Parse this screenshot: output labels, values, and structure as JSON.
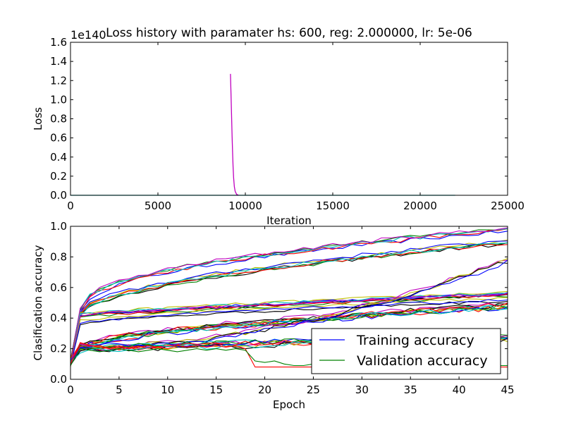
{
  "chart_data": [
    {
      "type": "line",
      "title": "Loss history with paramater hs: 600, reg: 2.000000, lr: 5e-06",
      "offset_text": "1e140",
      "xlabel": "Iteration",
      "ylabel": "Loss",
      "xlim": [
        0,
        25000
      ],
      "ylim": [
        0,
        1.6
      ],
      "xticks": [
        0,
        5000,
        10000,
        15000,
        20000,
        25000
      ],
      "yticks": [
        0.0,
        0.2,
        0.4,
        0.6,
        0.8,
        1.0,
        1.2,
        1.4,
        1.6
      ],
      "grid": false,
      "series": [
        {
          "color": "#00bfbf",
          "points": [
            [
              0,
              0
            ],
            [
              22000,
              0
            ]
          ]
        },
        {
          "color": "#bf00bf",
          "points": [
            [
              9150,
              1.27
            ],
            [
              9180,
              1.05
            ],
            [
              9210,
              0.85
            ],
            [
              9240,
              0.62
            ],
            [
              9270,
              0.45
            ],
            [
              9300,
              0.3
            ],
            [
              9330,
              0.18
            ],
            [
              9370,
              0.09
            ],
            [
              9420,
              0.04
            ],
            [
              9500,
              0.01
            ],
            [
              9600,
              0.0
            ]
          ]
        }
      ]
    },
    {
      "type": "line",
      "xlabel": "Epoch",
      "ylabel": "Clasification accuracy",
      "xlim": [
        0,
        45
      ],
      "ylim": [
        0,
        1.0
      ],
      "xticks": [
        0,
        5,
        10,
        15,
        20,
        25,
        30,
        35,
        40,
        45
      ],
      "yticks": [
        0.0,
        0.2,
        0.4,
        0.6,
        0.8,
        1.0
      ],
      "grid": false,
      "legend": {
        "placement": "lower right",
        "entries": [
          {
            "label": "Training accuracy",
            "color": "#0000ff"
          },
          {
            "label": "Validation accuracy",
            "color": "#008000"
          }
        ]
      },
      "palette": [
        "#0000ff",
        "#008000",
        "#ff0000",
        "#00bfbf",
        "#bf00bf",
        "#bfbf00",
        "#000000"
      ],
      "families": [
        {
          "start": 0.12,
          "y1": 0.45,
          "end": 0.98,
          "p": 0.45,
          "n": 5,
          "noise": 0.013
        },
        {
          "start": 0.11,
          "y1": 0.43,
          "end": 0.9,
          "p": 0.55,
          "n": 6,
          "noise": 0.013
        },
        {
          "start": 0.1,
          "y1": 0.42,
          "end": 0.56,
          "p": 0.85,
          "n": 8,
          "noise": 0.01
        },
        {
          "start": 0.09,
          "y1": 0.37,
          "end": 0.52,
          "p": 0.7,
          "n": 3,
          "noise": 0.009
        },
        {
          "start": 0.12,
          "y1": 0.21,
          "end": 0.48,
          "p": 0.6,
          "n": 10,
          "noise": 0.018
        },
        {
          "start": 0.11,
          "y1": 0.21,
          "end": 0.78,
          "p": 1.85,
          "n": 4,
          "noise": 0.016
        },
        {
          "start": 0.1,
          "y1": 0.2,
          "end": 0.27,
          "p": 0.8,
          "n": 10,
          "noise": 0.02
        }
      ],
      "special_series": [
        {
          "color": "#ff0000",
          "values": [
            0.1,
            0.24,
            0.22,
            0.21,
            0.2,
            0.22,
            0.2,
            0.21,
            0.22,
            0.21,
            0.2,
            0.22,
            0.21,
            0.22,
            0.21,
            0.22,
            0.21,
            0.22,
            0.2,
            0.08,
            0.08,
            0.08,
            0.08,
            0.08,
            0.08,
            0.08,
            0.08,
            0.08,
            0.08,
            0.08,
            0.08,
            0.08,
            0.08,
            0.08,
            0.08,
            0.08,
            0.08,
            0.08,
            0.08,
            0.08,
            0.08,
            0.08,
            0.08,
            0.08,
            0.08,
            0.08
          ]
        },
        {
          "color": "#008000",
          "values": [
            0.09,
            0.2,
            0.19,
            0.18,
            0.19,
            0.2,
            0.19,
            0.18,
            0.19,
            0.2,
            0.19,
            0.18,
            0.19,
            0.2,
            0.19,
            0.2,
            0.19,
            0.2,
            0.19,
            0.12,
            0.11,
            0.12,
            0.1,
            0.09,
            0.09,
            0.1,
            0.09,
            0.09,
            0.1,
            0.09,
            0.09,
            0.1,
            0.09,
            0.09,
            0.09,
            0.1,
            0.09,
            0.09,
            0.09,
            0.1,
            0.09,
            0.09,
            0.09,
            0.09,
            0.09,
            0.09
          ]
        }
      ]
    }
  ]
}
